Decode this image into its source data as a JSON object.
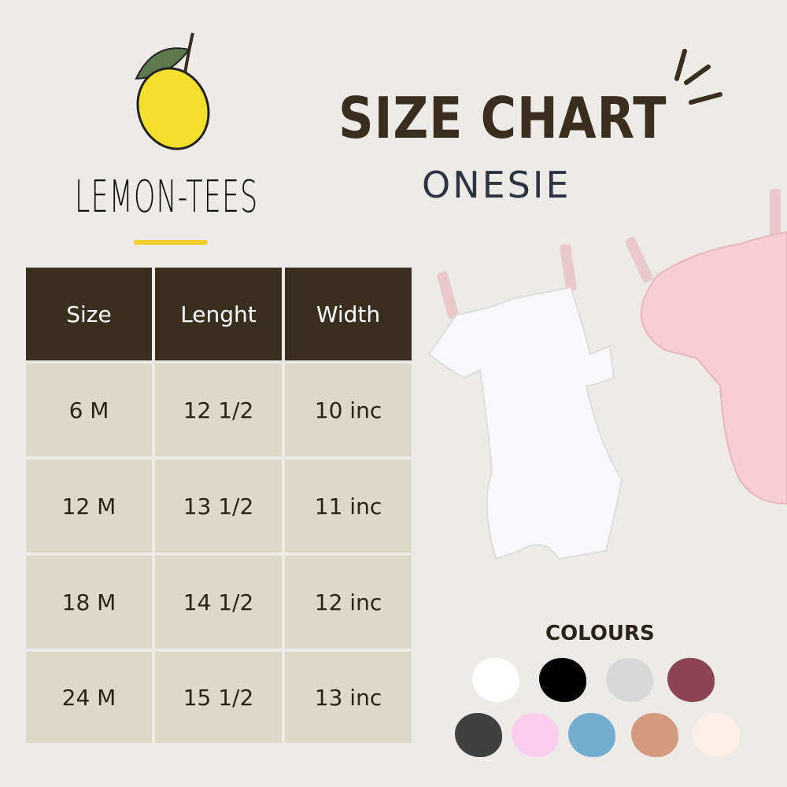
{
  "brand": {
    "name": "LEMON-TEES"
  },
  "header": {
    "title": "SIZE CHART",
    "subtitle": "ONESIE"
  },
  "table": {
    "columns": [
      "Size",
      "Lenght",
      "Width"
    ],
    "rows": [
      [
        "6 M",
        "12 1/2",
        "10 inc"
      ],
      [
        "12 M",
        "13 1/2",
        "11 inc"
      ],
      [
        "18 M",
        "14 1/2",
        "12 inc"
      ],
      [
        "24 M",
        "15 1/2",
        "13 inc"
      ]
    ]
  },
  "colours": {
    "label": "COLOURS",
    "swatches": [
      "#ffffff",
      "#000000",
      "#d8d8d8",
      "#8c4553",
      "#404040",
      "#fbcdef",
      "#73aed0",
      "#d49a7e",
      "#fdf0e8"
    ]
  }
}
